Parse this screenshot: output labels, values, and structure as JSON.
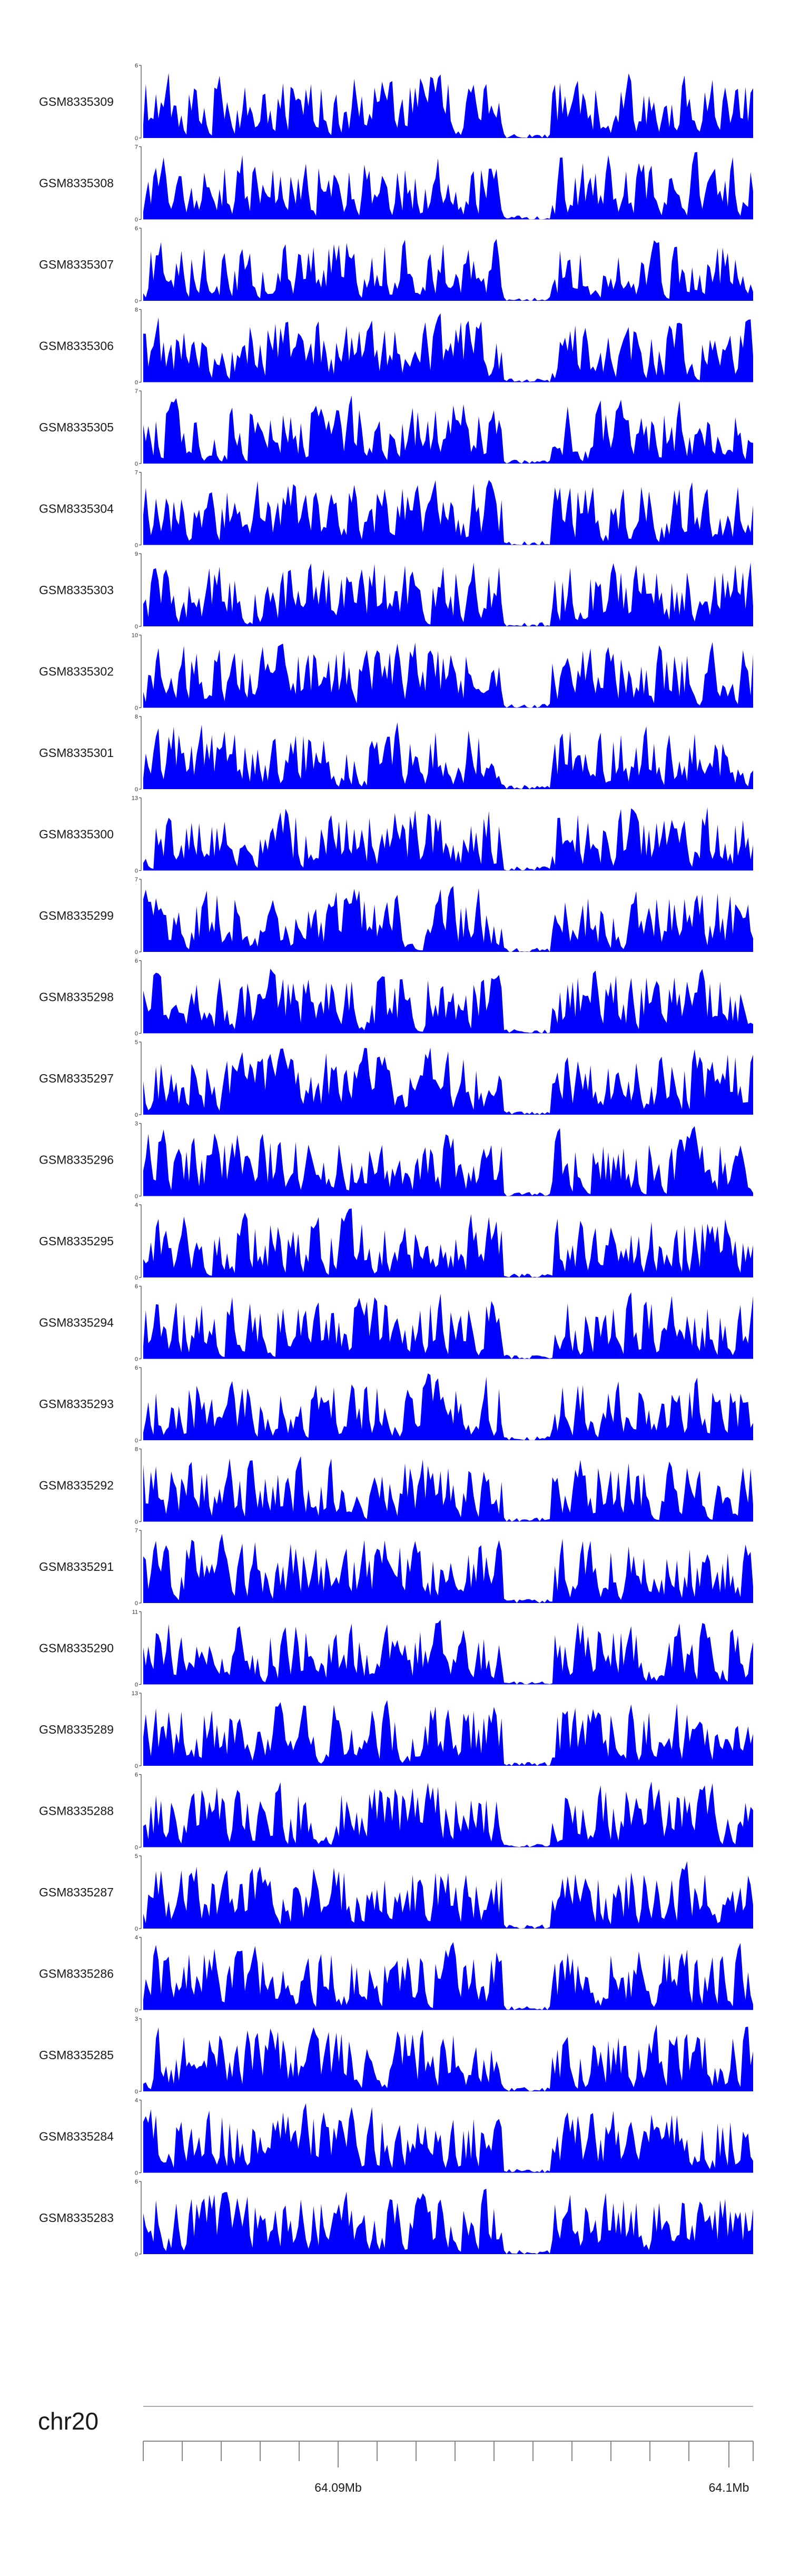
{
  "chart_data": {
    "type": "area",
    "color": "#0000ff",
    "tracks": [
      {
        "name": "GSM8335309",
        "ymax": 6,
        "ymin": 0
      },
      {
        "name": "GSM8335308",
        "ymax": 7,
        "ymin": 0
      },
      {
        "name": "GSM8335307",
        "ymax": 6,
        "ymin": 0
      },
      {
        "name": "GSM8335306",
        "ymax": 8,
        "ymin": 0
      },
      {
        "name": "GSM8335305",
        "ymax": 7,
        "ymin": 0
      },
      {
        "name": "GSM8335304",
        "ymax": 7,
        "ymin": 0
      },
      {
        "name": "GSM8335303",
        "ymax": 9,
        "ymin": 0
      },
      {
        "name": "GSM8335302",
        "ymax": 10,
        "ymin": 0
      },
      {
        "name": "GSM8335301",
        "ymax": 8,
        "ymin": 0
      },
      {
        "name": "GSM8335300",
        "ymax": 13,
        "ymin": 0
      },
      {
        "name": "GSM8335299",
        "ymax": 7,
        "ymin": 0
      },
      {
        "name": "GSM8335298",
        "ymax": 6,
        "ymin": 0
      },
      {
        "name": "GSM8335297",
        "ymax": 5,
        "ymin": 0
      },
      {
        "name": "GSM8335296",
        "ymax": 3,
        "ymin": 0
      },
      {
        "name": "GSM8335295",
        "ymax": 4,
        "ymin": 0
      },
      {
        "name": "GSM8335294",
        "ymax": 6,
        "ymin": 0
      },
      {
        "name": "GSM8335293",
        "ymax": 6,
        "ymin": 0
      },
      {
        "name": "GSM8335292",
        "ymax": 8,
        "ymin": 0
      },
      {
        "name": "GSM8335291",
        "ymax": 7,
        "ymin": 0
      },
      {
        "name": "GSM8335290",
        "ymax": 11,
        "ymin": 0
      },
      {
        "name": "GSM8335289",
        "ymax": 13,
        "ymin": 0
      },
      {
        "name": "GSM8335288",
        "ymax": 6,
        "ymin": 0
      },
      {
        "name": "GSM8335287",
        "ymax": 5,
        "ymin": 0
      },
      {
        "name": "GSM8335286",
        "ymax": 4,
        "ymin": 0
      },
      {
        "name": "GSM8335285",
        "ymax": 3,
        "ymin": 0
      },
      {
        "name": "GSM8335284",
        "ymax": 4,
        "ymin": 0
      },
      {
        "name": "GSM8335283",
        "ymax": 6,
        "ymin": 0
      }
    ],
    "x_axis": {
      "chromosome": "chr20",
      "tick_labels": [
        "64.09Mb",
        "64.1Mb"
      ],
      "labeled_ticks_mb": [
        64.09,
        64.1
      ]
    }
  }
}
